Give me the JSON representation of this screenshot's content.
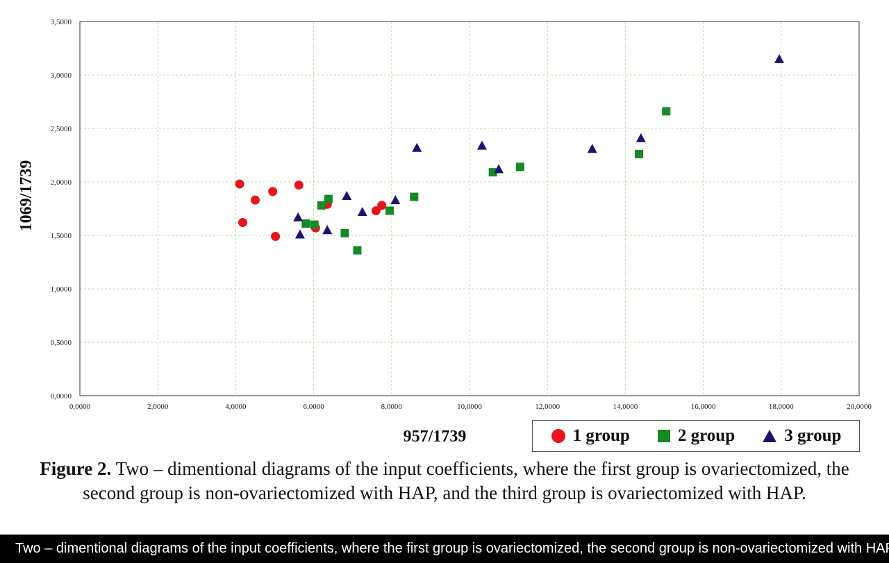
{
  "chart_data": {
    "type": "scatter",
    "xlabel": "957/1739",
    "ylabel": "1069/1739",
    "xlim": [
      0,
      20
    ],
    "ylim": [
      0,
      3.5
    ],
    "x_ticks": [
      "0,0000",
      "2,0000",
      "4,0000",
      "6,0000",
      "8,0000",
      "10,0000",
      "12,0000",
      "14,0000",
      "16,0000",
      "18,0000",
      "20,0000"
    ],
    "y_ticks": [
      "0,0000",
      "0,5000",
      "1,0000",
      "1,5000",
      "2,0000",
      "2,5000",
      "3,0000",
      "3,5000"
    ],
    "grid": true,
    "legend_position": "bottom-right",
    "series": [
      {
        "name": "1 group",
        "marker": "circle",
        "color": "#e8141c",
        "points": [
          [
            4.1,
            1.98
          ],
          [
            4.18,
            1.62
          ],
          [
            4.5,
            1.83
          ],
          [
            4.95,
            1.91
          ],
          [
            5.02,
            1.49
          ],
          [
            5.62,
            1.97
          ],
          [
            6.05,
            1.57
          ],
          [
            6.35,
            1.79
          ],
          [
            7.6,
            1.73
          ],
          [
            7.75,
            1.78
          ]
        ]
      },
      {
        "name": "2 group",
        "marker": "square",
        "color": "#168a25",
        "points": [
          [
            5.8,
            1.61
          ],
          [
            6.02,
            1.6
          ],
          [
            6.2,
            1.78
          ],
          [
            6.38,
            1.84
          ],
          [
            6.8,
            1.52
          ],
          [
            7.12,
            1.36
          ],
          [
            7.95,
            1.73
          ],
          [
            8.58,
            1.86
          ],
          [
            10.6,
            2.09
          ],
          [
            11.3,
            2.14
          ],
          [
            14.35,
            2.26
          ],
          [
            15.05,
            2.66
          ]
        ]
      },
      {
        "name": "3 group",
        "marker": "triangle",
        "color": "#1a1470",
        "points": [
          [
            5.6,
            1.67
          ],
          [
            5.65,
            1.51
          ],
          [
            6.35,
            1.55
          ],
          [
            6.85,
            1.87
          ],
          [
            7.25,
            1.72
          ],
          [
            8.1,
            1.83
          ],
          [
            8.65,
            2.32
          ],
          [
            10.32,
            2.34
          ],
          [
            10.75,
            2.12
          ],
          [
            13.15,
            2.31
          ],
          [
            14.4,
            2.41
          ],
          [
            17.95,
            3.15
          ]
        ]
      }
    ]
  },
  "caption": {
    "label": "Figure 2.",
    "text": " Two – dimentional diagrams of the input coefficients, where the first group is ovariectomized, the second group is non-ovariectomized with HAP, and the third group is ovariectomized with HAP."
  },
  "footer_text": "Two – dimentional diagrams of the input coefficients, where the first group is ovariectomized, the second group is non-ovariectomized with HAP, and the third group is ovariectomized with HAP."
}
